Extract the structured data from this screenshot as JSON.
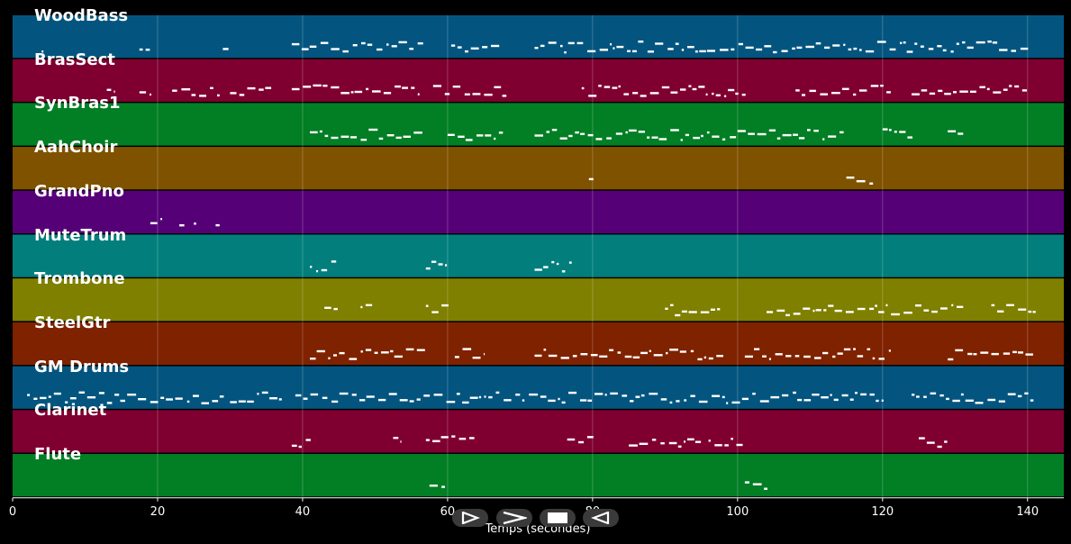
{
  "chart_data": {
    "type": "piano-roll",
    "xlabel": "Temps (secondes)",
    "xlim": [
      0,
      145
    ],
    "xticks": [
      0,
      20,
      40,
      60,
      80,
      100,
      120,
      140
    ],
    "grid": true,
    "tracks": [
      {
        "name": "WoodBass",
        "color": "#03557f"
      },
      {
        "name": "BrasSect",
        "color": "#7f0030"
      },
      {
        "name": "SynBras1",
        "color": "#027e24"
      },
      {
        "name": "AahChoir",
        "color": "#7f5200"
      },
      {
        "name": "GrandPno",
        "color": "#560078"
      },
      {
        "name": "MuteTrum",
        "color": "#027f7c"
      },
      {
        "name": "Trombone",
        "color": "#7f7f00"
      },
      {
        "name": "SteelGtr",
        "color": "#7f2200"
      },
      {
        "name": "GM Drums",
        "color": "#03557f"
      },
      {
        "name": "Clarinet",
        "color": "#7f0030"
      },
      {
        "name": "Flute",
        "color": "#027e24"
      }
    ],
    "activity": [
      [
        [
          4,
          4.3
        ],
        [
          17.5,
          19
        ],
        [
          29,
          30
        ],
        [
          38.5,
          56.5
        ],
        [
          60.5,
          67
        ],
        [
          72,
          140
        ]
      ],
      [
        [
          13,
          14
        ],
        [
          17.5,
          19
        ],
        [
          22,
          29
        ],
        [
          30,
          36
        ],
        [
          38.5,
          56
        ],
        [
          58,
          68
        ],
        [
          78.5,
          101
        ],
        [
          108,
          121
        ],
        [
          124,
          140
        ]
      ],
      [
        [
          41,
          56.5
        ],
        [
          60,
          67.5
        ],
        [
          72,
          114.5
        ],
        [
          120,
          124
        ],
        [
          129,
          131
        ]
      ],
      [
        [
          79.5,
          80
        ],
        [
          115,
          119
        ]
      ],
      [
        [
          19,
          20.5
        ],
        [
          23,
          24
        ],
        [
          25,
          25.2
        ],
        [
          28,
          28.5
        ]
      ],
      [
        [
          41,
          44.5
        ],
        [
          57,
          60
        ],
        [
          72,
          77
        ]
      ],
      [
        [
          43,
          45
        ],
        [
          48,
          50
        ],
        [
          57,
          60
        ],
        [
          90,
          98
        ],
        [
          104,
          131
        ],
        [
          135,
          141
        ]
      ],
      [
        [
          41,
          57
        ],
        [
          61,
          65
        ],
        [
          72,
          98
        ],
        [
          101,
          121
        ],
        [
          129,
          141
        ]
      ],
      [
        [
          2,
          29
        ],
        [
          30,
          37
        ],
        [
          39,
          120
        ],
        [
          124,
          141
        ]
      ],
      [
        [
          38.5,
          41
        ],
        [
          52.5,
          53.5
        ],
        [
          57,
          64
        ],
        [
          76.5,
          80
        ],
        [
          85,
          95
        ],
        [
          96,
          101
        ],
        [
          125,
          129
        ]
      ],
      [
        [
          57.5,
          60
        ],
        [
          101,
          104
        ]
      ]
    ]
  },
  "transport": {
    "play_icon": "play-icon",
    "forward_icon": "forward-icon",
    "stop_icon": "stop-icon",
    "rewind_icon": "rewind-icon"
  }
}
